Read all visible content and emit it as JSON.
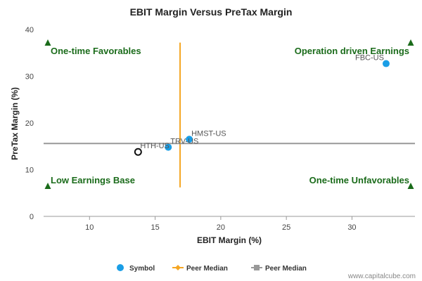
{
  "chart_data": {
    "type": "scatter",
    "title": "EBIT Margin Versus PreTax Margin",
    "xlabel": "EBIT Margin (%)",
    "ylabel": "PreTax Margin (%)",
    "xlim": [
      6.5,
      34.8
    ],
    "ylim": [
      0,
      40
    ],
    "xticks": [
      10,
      15,
      20,
      25,
      30
    ],
    "yticks": [
      0,
      10,
      20,
      30,
      40
    ],
    "grid": false,
    "points": [
      {
        "label": "FBC-US",
        "x": 32.6,
        "y": 32.7,
        "style": "filled",
        "color": "#1a9ee6"
      },
      {
        "label": "HMST-US",
        "x": 17.6,
        "y": 16.5,
        "style": "filled",
        "color": "#1a9ee6"
      },
      {
        "label": "TRV-US",
        "x": 16.0,
        "y": 14.8,
        "style": "filled",
        "color": "#1a9ee6"
      },
      {
        "label": "HTH-US",
        "x": 13.7,
        "y": 13.8,
        "style": "hollow",
        "color": "#111111"
      }
    ],
    "median_lines": [
      {
        "orientation": "vertical",
        "value": 16.9,
        "from": 6.2,
        "to": 37.2,
        "color": "#f5a623"
      },
      {
        "orientation": "horizontal",
        "value": 15.6,
        "from": 6.5,
        "to": 34.8,
        "color": "#999999"
      }
    ],
    "quadrant_labels": {
      "top_left": "One-time Favorables",
      "top_right": "Operation driven Earnings",
      "bottom_left": "Low Earnings Base",
      "bottom_right": "One-time Unfavorables"
    },
    "corner_marker_color": "#1a6b1a",
    "legend": {
      "placement": "bottom",
      "items": [
        {
          "label": "Symbol",
          "marker": "circle",
          "color": "#1a9ee6"
        },
        {
          "label": "Peer Median",
          "marker": "line-diamond",
          "color": "#f5a623"
        },
        {
          "label": "Peer Median",
          "marker": "line-square",
          "color": "#999999"
        }
      ]
    }
  },
  "watermark": "www.capitalcube.com"
}
